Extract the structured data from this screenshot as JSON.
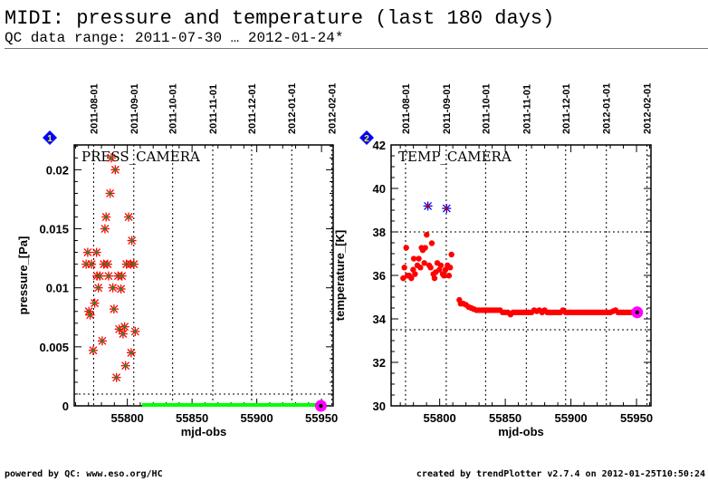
{
  "header": {
    "title": "MIDI: pressure and temperature (last 180 days)",
    "subtitle": "QC data range: 2011-07-30 … 2012-01-24*"
  },
  "footer": {
    "left": "powered by QC: www.eso.org/HC",
    "right": "created by trendPlotter v2.7.4 on 2012-01-25T10:50:24"
  },
  "colors": {
    "points": "#ff0000",
    "marker_inner": "#228b22",
    "outlier": "#0000ff",
    "zero_line": "#00ff00",
    "latest": "#ff00ff",
    "badge": "#0000ff",
    "badge_text": "#ffff00"
  },
  "chart_data": [
    {
      "type": "scatter",
      "badge": "1",
      "title": "PRESS_CAMERA",
      "xlabel": "mjd-obs",
      "ylabel": "pressure_[Pa]",
      "xlim": [
        55759,
        55959
      ],
      "ylim": [
        0,
        0.0221
      ],
      "xticks": [
        55800,
        55850,
        55900,
        55950
      ],
      "yticks": [
        0,
        0.005,
        0.01,
        0.015,
        0.02
      ],
      "ytick_labels": [
        "0",
        "0.005",
        "0.01",
        "0.015",
        "0.02"
      ],
      "yminor": 0.001,
      "date_ticks": [
        {
          "mjd": 55774,
          "label": "2011-08-01"
        },
        {
          "mjd": 55805,
          "label": "2011-09-01"
        },
        {
          "mjd": 55835,
          "label": "2011-10-01"
        },
        {
          "mjd": 55866,
          "label": "2011-11-01"
        },
        {
          "mjd": 55896,
          "label": "2011-12-01"
        },
        {
          "mjd": 55927,
          "label": "2012-01-01"
        },
        {
          "mjd": 55958,
          "label": "2012-02-01"
        }
      ],
      "hlines": [
        0.001
      ],
      "marker": "star",
      "points": [
        [
          55787.6,
          0.021
        ],
        [
          55790.7,
          0.02
        ],
        [
          55786.7,
          0.018
        ],
        [
          55783.6,
          0.016
        ],
        [
          55801,
          0.016
        ],
        [
          55782.7,
          0.015
        ],
        [
          55803.5,
          0.014
        ],
        [
          55769.4,
          0.013
        ],
        [
          55776.2,
          0.013
        ],
        [
          55768.2,
          0.012
        ],
        [
          55772.4,
          0.012
        ],
        [
          55781.8,
          0.012
        ],
        [
          55784.8,
          0.012
        ],
        [
          55799.3,
          0.012
        ],
        [
          55802.6,
          0.012
        ],
        [
          55805.1,
          0.012
        ],
        [
          55776.6,
          0.011
        ],
        [
          55778.7,
          0.011
        ],
        [
          55785.5,
          0.011
        ],
        [
          55792.8,
          0.011
        ],
        [
          55795.8,
          0.011
        ],
        [
          55777.6,
          0.01
        ],
        [
          55788.8,
          0.01
        ],
        [
          55795.1,
          0.0099
        ],
        [
          55774.8,
          0.0087
        ],
        [
          55770.3,
          0.008
        ],
        [
          55771.3,
          0.0077
        ],
        [
          55789.7,
          0.0082
        ],
        [
          55780.6,
          0.0055
        ],
        [
          55773.6,
          0.0047
        ],
        [
          55797.9,
          0.0067
        ],
        [
          55793.7,
          0.0065
        ],
        [
          55796.7,
          0.0061
        ],
        [
          55806.1,
          0.0063
        ],
        [
          55803,
          0.0045
        ],
        [
          55798.6,
          0.0034
        ],
        [
          55791.6,
          0.0024
        ]
      ],
      "outliers": [],
      "zero_segment": [
        55811.4,
        55948
      ],
      "latest": [
        55949.5,
        0
      ]
    },
    {
      "type": "scatter",
      "badge": "2",
      "title": "TEMP_CAMERA",
      "xlabel": "mjd-obs",
      "ylabel": "temperature_[K]",
      "xlim": [
        55763,
        55961
      ],
      "ylim": [
        30,
        42
      ],
      "xticks": [
        55800,
        55850,
        55900,
        55950
      ],
      "yticks": [
        30,
        32,
        34,
        36,
        38,
        40,
        42
      ],
      "ytick_labels": [
        "30",
        "32",
        "34",
        "36",
        "38",
        "40",
        "42"
      ],
      "yminor": 0.5,
      "date_ticks": [
        {
          "mjd": 55774,
          "label": "2011-08-01"
        },
        {
          "mjd": 55805,
          "label": "2011-09-01"
        },
        {
          "mjd": 55835,
          "label": "2011-10-01"
        },
        {
          "mjd": 55866,
          "label": "2011-11-01"
        },
        {
          "mjd": 55896,
          "label": "2011-12-01"
        },
        {
          "mjd": 55927,
          "label": "2012-01-01"
        },
        {
          "mjd": 55958,
          "label": "2012-02-01"
        }
      ],
      "hlines": [
        38,
        33.5
      ],
      "marker": "dot",
      "points": [
        [
          55772.2,
          35.87
        ],
        [
          55773.1,
          36.36
        ],
        [
          55774.5,
          37.27
        ],
        [
          55775.4,
          35.99
        ],
        [
          55776.8,
          35.99
        ],
        [
          55778.4,
          35.87
        ],
        [
          55779.8,
          36.26
        ],
        [
          55780.3,
          36.77
        ],
        [
          55781.2,
          36.06
        ],
        [
          55783,
          36.46
        ],
        [
          55784.1,
          36.77
        ],
        [
          55785.3,
          36.36
        ],
        [
          55786.2,
          37.27
        ],
        [
          55787.1,
          37.16
        ],
        [
          55788.3,
          36.57
        ],
        [
          55789,
          37.27
        ],
        [
          55790.1,
          37.87
        ],
        [
          55792,
          36.46
        ],
        [
          55793.1,
          36.36
        ],
        [
          55794,
          37.48
        ],
        [
          55795.2,
          36.06
        ],
        [
          55796.1,
          35.87
        ],
        [
          55797,
          36.15
        ],
        [
          55798.2,
          36.57
        ],
        [
          55799.8,
          36.26
        ],
        [
          55800.9,
          36.46
        ],
        [
          55802.3,
          36.06
        ],
        [
          55803.2,
          35.99
        ],
        [
          55804.4,
          36.26
        ],
        [
          55806,
          36.46
        ],
        [
          55807.1,
          35.99
        ],
        [
          55808,
          36.36
        ],
        [
          55809,
          36.96
        ],
        [
          55815,
          34.87
        ],
        [
          55816,
          34.7
        ],
        [
          55818,
          34.7
        ],
        [
          55820,
          34.65
        ],
        [
          55822,
          34.55
        ],
        [
          55824,
          34.5
        ],
        [
          55826,
          34.45
        ],
        [
          55828,
          34.4
        ],
        [
          55830,
          34.4
        ],
        [
          55832,
          34.4
        ],
        [
          55834,
          34.4
        ],
        [
          55836,
          34.4
        ],
        [
          55838,
          34.4
        ],
        [
          55840,
          34.4
        ],
        [
          55842,
          34.4
        ],
        [
          55844,
          34.4
        ],
        [
          55846,
          34.4
        ],
        [
          55848,
          34.3
        ],
        [
          55850,
          34.3
        ],
        [
          55852,
          34.3
        ],
        [
          55854,
          34.2
        ],
        [
          55856,
          34.3
        ],
        [
          55858,
          34.3
        ],
        [
          55860,
          34.3
        ],
        [
          55862,
          34.3
        ],
        [
          55864,
          34.3
        ],
        [
          55866,
          34.3
        ],
        [
          55868,
          34.3
        ],
        [
          55870,
          34.3
        ],
        [
          55872,
          34.4
        ],
        [
          55874,
          34.35
        ],
        [
          55876,
          34.4
        ],
        [
          55878,
          34.3
        ],
        [
          55880,
          34.4
        ],
        [
          55882,
          34.3
        ],
        [
          55884,
          34.3
        ],
        [
          55886,
          34.3
        ],
        [
          55888,
          34.3
        ],
        [
          55890,
          34.3
        ],
        [
          55892,
          34.3
        ],
        [
          55894,
          34.4
        ],
        [
          55896,
          34.3
        ],
        [
          55898,
          34.3
        ],
        [
          55900,
          34.3
        ],
        [
          55902,
          34.3
        ],
        [
          55904,
          34.3
        ],
        [
          55906,
          34.3
        ],
        [
          55908,
          34.3
        ],
        [
          55910,
          34.3
        ],
        [
          55912,
          34.3
        ],
        [
          55914,
          34.3
        ],
        [
          55916,
          34.3
        ],
        [
          55918,
          34.3
        ],
        [
          55920,
          34.3
        ],
        [
          55922,
          34.3
        ],
        [
          55924,
          34.3
        ],
        [
          55926,
          34.3
        ],
        [
          55928,
          34.3
        ],
        [
          55930,
          34.3
        ],
        [
          55932,
          34.35
        ],
        [
          55934,
          34.4
        ],
        [
          55936,
          34.3
        ],
        [
          55938,
          34.3
        ],
        [
          55940,
          34.3
        ],
        [
          55942,
          34.3
        ],
        [
          55944,
          34.3
        ],
        [
          55946,
          34.3
        ],
        [
          55948,
          34.3
        ]
      ],
      "outliers": [
        [
          55791,
          39.19
        ],
        [
          55805.3,
          39.08
        ]
      ],
      "zero_segment": null,
      "latest": [
        55950.5,
        34.3
      ]
    }
  ]
}
